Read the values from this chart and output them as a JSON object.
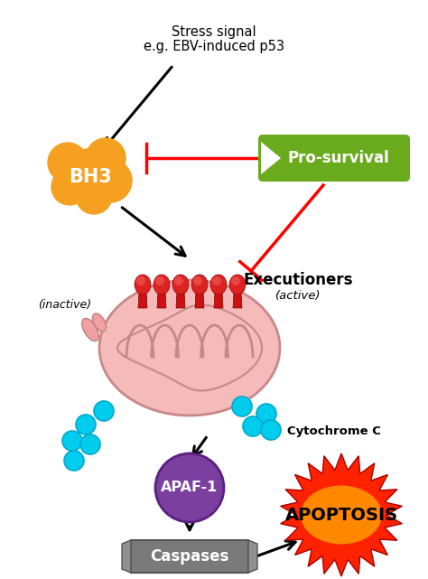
{
  "title_line1": "Stress signal",
  "title_line2": "e.g. EBV-induced p53",
  "bh3_label": "BH3",
  "prosurvival_label": "Pro-survival",
  "executioners_label": "Executioners",
  "active_label": "(active)",
  "inactive_label": "(inactive)",
  "cytochrome_label": "Cytochrome C",
  "apaf_label": "APAF-1",
  "caspases_label": "Caspases",
  "apoptosis_label": "APOPTOSIS",
  "bh3_color": "#F5A020",
  "prosurvival_color": "#6AAB1E",
  "apaf_color": "#7B3FA0",
  "caspases_color": "#7A7A7A",
  "mito_fill": "#F5BABA",
  "mito_edge": "#C88888",
  "executioner_color": "#CC1111",
  "cytochrome_color": "#00CCEE",
  "apoptosis_burst_outer": "#FF2200",
  "apoptosis_burst_inner": "#FF8800",
  "background": "#ffffff",
  "fig_width": 4.74,
  "fig_height": 6.41,
  "dpi": 100
}
